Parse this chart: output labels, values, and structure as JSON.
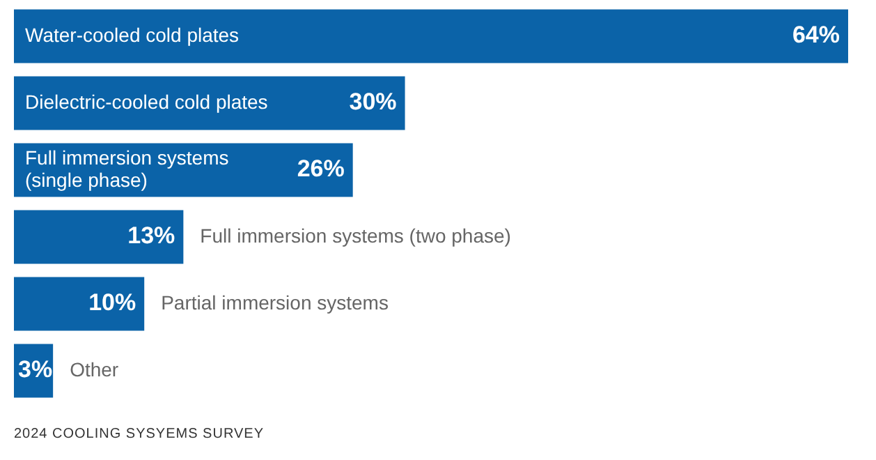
{
  "chart_data": {
    "type": "bar",
    "orientation": "horizontal",
    "categories": [
      "Water-cooled cold plates",
      "Dielectric-cooled cold plates",
      "Full immersion systems (single phase)",
      "Full immersion systems (two phase)",
      "Partial immersion systems",
      "Other"
    ],
    "values": [
      64,
      30,
      26,
      13,
      10,
      3
    ],
    "value_labels": [
      "64%",
      "30%",
      "26%",
      "13%",
      "10%",
      "3%"
    ],
    "color": "#0b63a8",
    "xlim": [
      0,
      64
    ],
    "tick_labels": false,
    "annotations": [
      "2024 COOLING SYSYEMS SURVEY"
    ]
  }
}
